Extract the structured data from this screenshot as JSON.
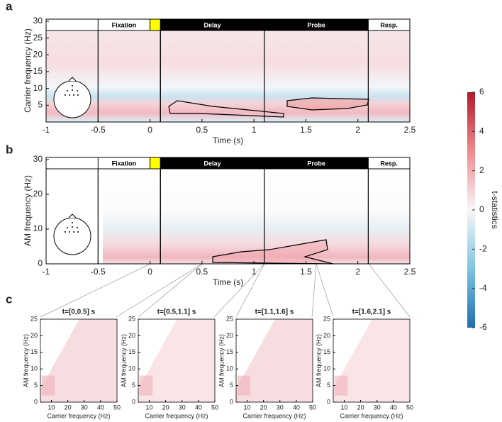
{
  "panels": [
    {
      "label": "a",
      "ylabel": "Carrier frequency (Hz)",
      "xlabel": "Time (s)",
      "xlim": [
        -1,
        2.5
      ],
      "xticks": [
        -1,
        -0.5,
        0,
        0.5,
        1,
        1.5,
        2,
        2.5
      ],
      "ylim": [
        0,
        30
      ],
      "yticks": [
        5,
        10,
        15,
        20,
        25,
        30
      ]
    },
    {
      "label": "b",
      "ylabel": "AM frequency (Hz)",
      "xlabel": "Time (s)",
      "xlim": [
        -1,
        2.5
      ],
      "xticks": [
        -1,
        -0.5,
        0,
        0.5,
        1,
        1.5,
        2,
        2.5
      ],
      "ylim": [
        0,
        30
      ],
      "yticks": [
        0,
        10,
        20,
        30
      ]
    }
  ],
  "epochs": [
    {
      "name": "Fixation",
      "start": -0.5,
      "end": 0,
      "color": "#ffffff"
    },
    {
      "name": "Delay",
      "start": 0.1,
      "end": 1.1,
      "color": "#000000"
    },
    {
      "name": "Probe",
      "start": 1.1,
      "end": 2.1,
      "color": "#000000"
    },
    {
      "name": "Resp.",
      "start": 2.1,
      "end": 2.5,
      "color": "#ffffff"
    }
  ],
  "cue": {
    "start": 0,
    "end": 0.1,
    "color": "#ffff00"
  },
  "colorbar": {
    "label": "t-statistics",
    "lim": [
      -6,
      6
    ],
    "ticks": [
      -6,
      -4,
      -2,
      0,
      2,
      4,
      6
    ]
  },
  "subpanels": {
    "label": "c",
    "xlabel": "Carrier frequency (Hz)",
    "ylabel": "AM frequency (Hz)",
    "xlim": [
      2,
      50
    ],
    "xticks": [
      10,
      20,
      30,
      40,
      50
    ],
    "ylim": [
      0,
      25
    ],
    "yticks": [
      0,
      5,
      10,
      15,
      20,
      25
    ],
    "titles": [
      "t=[0,0.5] s",
      "t=[0.5,1.1] s",
      "t=[1.1,1.6] s",
      "t=[1.6,2.1] s"
    ]
  }
}
